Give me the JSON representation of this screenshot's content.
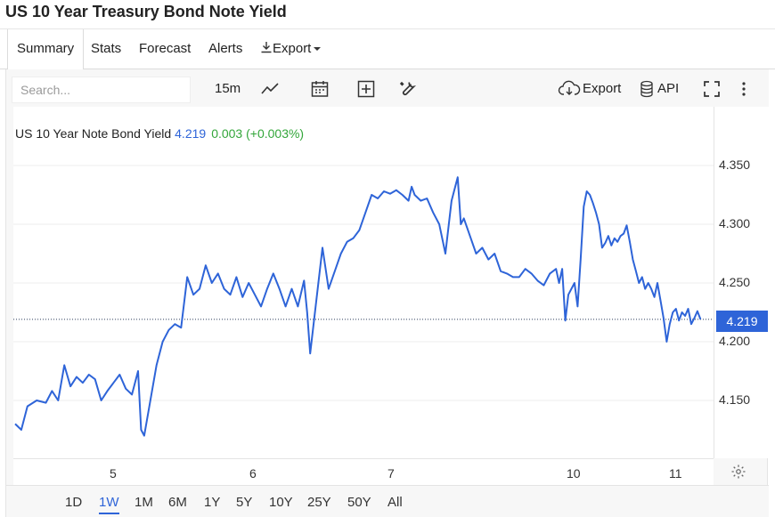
{
  "page": {
    "title": "US 10 Year Treasury Bond Note Yield"
  },
  "tabs": [
    {
      "label": "Summary"
    },
    {
      "label": "Stats"
    },
    {
      "label": "Forecast"
    },
    {
      "label": "Alerts"
    },
    {
      "label": "Export"
    }
  ],
  "toolbar": {
    "search_placeholder": "Search...",
    "interval": "15m",
    "export_label": "Export",
    "api_label": "API"
  },
  "legend": {
    "name": "US 10 Year Note Bond Yield",
    "value": "4.219",
    "change": "0.003 (+0.003%)"
  },
  "current_price_label": "4.219",
  "ranges": [
    "1D",
    "1W",
    "1M",
    "6M",
    "1Y",
    "5Y",
    "10Y",
    "25Y",
    "50Y",
    "All"
  ],
  "active_range": "1W",
  "colors": {
    "line": "#2e64d8",
    "positive": "#33a63a",
    "badge": "#2e64d8"
  },
  "chart_data": {
    "type": "line",
    "title": "",
    "xlabel": "",
    "ylabel": "",
    "x_ticks": [
      "5",
      "6",
      "7",
      "10",
      "11"
    ],
    "y_ticks": [
      "4.350",
      "4.300",
      "4.250",
      "4.200",
      "4.150"
    ],
    "ylim": [
      4.11,
      4.4
    ],
    "grid": true,
    "series": [
      {
        "name": "US 10 Year Note Bond Yield",
        "points": [
          [
            0.0,
            4.13
          ],
          [
            0.01,
            4.125
          ],
          [
            0.02,
            4.145
          ],
          [
            0.035,
            4.15
          ],
          [
            0.05,
            4.148
          ],
          [
            0.06,
            4.158
          ],
          [
            0.07,
            4.15
          ],
          [
            0.08,
            4.18
          ],
          [
            0.09,
            4.162
          ],
          [
            0.1,
            4.17
          ],
          [
            0.11,
            4.165
          ],
          [
            0.12,
            4.172
          ],
          [
            0.13,
            4.168
          ],
          [
            0.14,
            4.15
          ],
          [
            0.15,
            4.158
          ],
          [
            0.16,
            4.165
          ],
          [
            0.17,
            4.172
          ],
          [
            0.18,
            4.16
          ],
          [
            0.19,
            4.155
          ],
          [
            0.2,
            4.175
          ],
          [
            0.205,
            4.125
          ],
          [
            0.21,
            4.12
          ],
          [
            0.22,
            4.15
          ],
          [
            0.23,
            4.18
          ],
          [
            0.24,
            4.2
          ],
          [
            0.25,
            4.21
          ],
          [
            0.26,
            4.215
          ],
          [
            0.27,
            4.212
          ],
          [
            0.28,
            4.255
          ],
          [
            0.29,
            4.24
          ],
          [
            0.3,
            4.245
          ],
          [
            0.31,
            4.265
          ],
          [
            0.32,
            4.25
          ],
          [
            0.33,
            4.258
          ],
          [
            0.34,
            4.245
          ],
          [
            0.35,
            4.24
          ],
          [
            0.36,
            4.255
          ],
          [
            0.37,
            4.238
          ],
          [
            0.38,
            4.25
          ],
          [
            0.39,
            4.24
          ],
          [
            0.4,
            4.23
          ],
          [
            0.41,
            4.245
          ],
          [
            0.42,
            4.258
          ],
          [
            0.43,
            4.245
          ],
          [
            0.44,
            4.23
          ],
          [
            0.45,
            4.245
          ],
          [
            0.46,
            4.23
          ],
          [
            0.47,
            4.252
          ],
          [
            0.475,
            4.225
          ],
          [
            0.48,
            4.19
          ],
          [
            0.49,
            4.235
          ],
          [
            0.5,
            4.28
          ],
          [
            0.51,
            4.245
          ],
          [
            0.52,
            4.26
          ],
          [
            0.53,
            4.275
          ],
          [
            0.54,
            4.285
          ],
          [
            0.55,
            4.288
          ],
          [
            0.56,
            4.295
          ],
          [
            0.57,
            4.31
          ],
          [
            0.58,
            4.325
          ],
          [
            0.59,
            4.322
          ],
          [
            0.6,
            4.328
          ],
          [
            0.61,
            4.326
          ],
          [
            0.62,
            4.329
          ],
          [
            0.63,
            4.325
          ],
          [
            0.64,
            4.32
          ],
          [
            0.645,
            4.332
          ],
          [
            0.65,
            4.325
          ],
          [
            0.66,
            4.32
          ],
          [
            0.67,
            4.322
          ],
          [
            0.68,
            4.31
          ],
          [
            0.69,
            4.3
          ],
          [
            0.7,
            4.275
          ],
          [
            0.71,
            4.32
          ],
          [
            0.72,
            4.34
          ],
          [
            0.725,
            4.3
          ],
          [
            0.73,
            4.305
          ],
          [
            0.74,
            4.29
          ],
          [
            0.75,
            4.275
          ],
          [
            0.76,
            4.28
          ],
          [
            0.77,
            4.27
          ],
          [
            0.78,
            4.275
          ],
          [
            0.79,
            4.26
          ],
          [
            0.8,
            4.258
          ],
          [
            0.81,
            4.255
          ],
          [
            0.82,
            4.255
          ],
          [
            0.83,
            4.262
          ],
          [
            0.84,
            4.258
          ],
          [
            0.85,
            4.252
          ],
          [
            0.86,
            4.248
          ],
          [
            0.87,
            4.258
          ],
          [
            0.88,
            4.262
          ],
          [
            0.885,
            4.25
          ],
          [
            0.89,
            4.262
          ],
          [
            0.895,
            4.218
          ],
          [
            0.9,
            4.24
          ],
          [
            0.91,
            4.25
          ],
          [
            0.915,
            4.23
          ],
          [
            0.92,
            4.27
          ],
          [
            0.925,
            4.315
          ],
          [
            0.93,
            4.328
          ],
          [
            0.935,
            4.325
          ],
          [
            0.94,
            4.318
          ],
          [
            0.945,
            4.31
          ],
          [
            0.95,
            4.3
          ],
          [
            0.955,
            4.28
          ],
          [
            0.96,
            4.284
          ],
          [
            0.965,
            4.29
          ],
          [
            0.97,
            4.282
          ],
          [
            0.975,
            4.288
          ],
          [
            0.98,
            4.285
          ],
          [
            0.985,
            4.29
          ],
          [
            0.99,
            4.292
          ],
          [
            0.995,
            4.299
          ],
          [
            1.0,
            4.285
          ],
          [
            1.005,
            4.27
          ],
          [
            1.01,
            4.26
          ],
          [
            1.015,
            4.25
          ],
          [
            1.02,
            4.255
          ],
          [
            1.025,
            4.245
          ],
          [
            1.03,
            4.25
          ],
          [
            1.035,
            4.245
          ],
          [
            1.04,
            4.238
          ],
          [
            1.045,
            4.25
          ],
          [
            1.05,
            4.235
          ],
          [
            1.055,
            4.22
          ],
          [
            1.06,
            4.2
          ],
          [
            1.065,
            4.215
          ],
          [
            1.07,
            4.225
          ],
          [
            1.075,
            4.228
          ],
          [
            1.08,
            4.218
          ],
          [
            1.085,
            4.225
          ],
          [
            1.09,
            4.222
          ],
          [
            1.095,
            4.228
          ],
          [
            1.1,
            4.215
          ],
          [
            1.105,
            4.22
          ],
          [
            1.11,
            4.226
          ],
          [
            1.115,
            4.219
          ]
        ]
      }
    ]
  }
}
